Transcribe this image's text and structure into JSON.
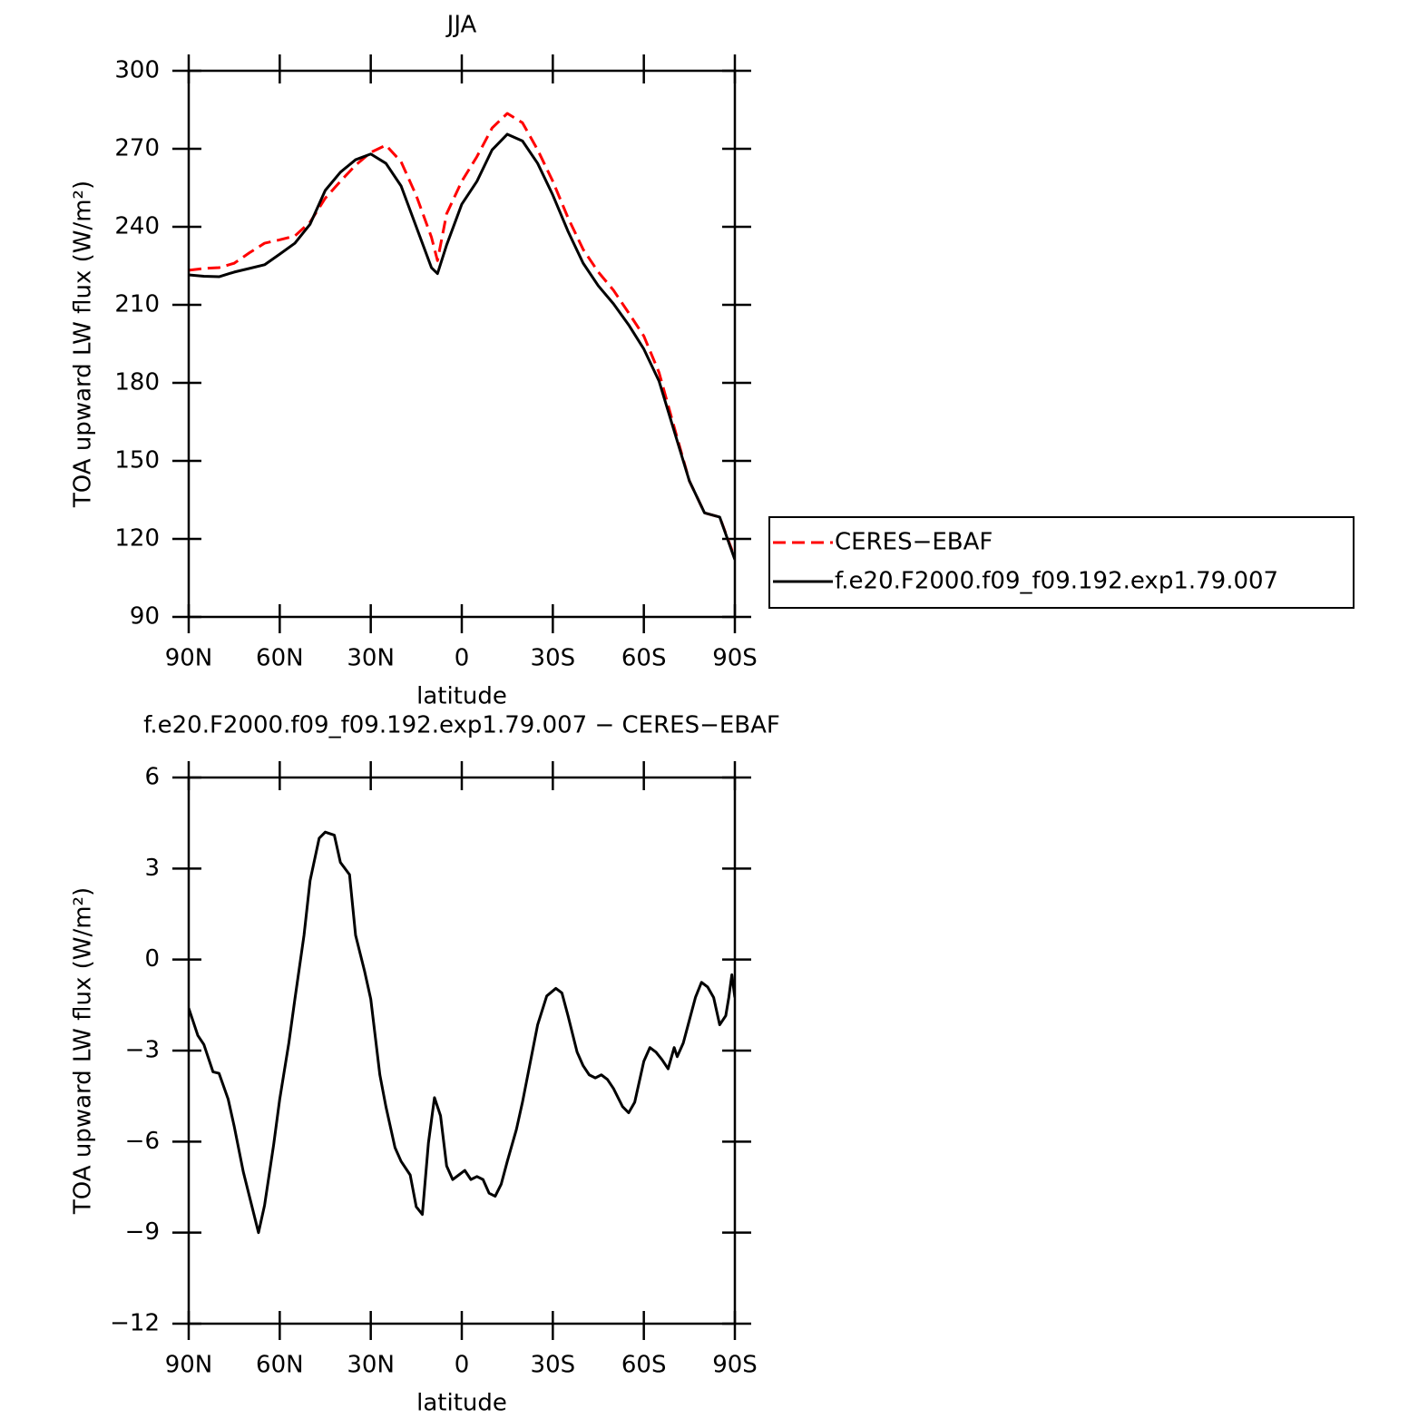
{
  "chart_data": [
    {
      "type": "line",
      "title": "JJA",
      "xlabel": "latitude",
      "ylabel": "TOA upward LW flux (W/m²)",
      "x": [
        90,
        85,
        80,
        75,
        70,
        65,
        60,
        55,
        50,
        45,
        40,
        35,
        30,
        25,
        20,
        15,
        10,
        8,
        5,
        0,
        -5,
        -10,
        -15,
        -20,
        -25,
        -30,
        -35,
        -40,
        -45,
        -50,
        -55,
        -60,
        -65,
        -70,
        -75,
        -80,
        -85,
        -90
      ],
      "series": [
        {
          "name": "CERES−EBAF",
          "color": "#ff0000",
          "dash": true,
          "values": [
            223.3,
            224,
            224.3,
            226,
            230,
            233.7,
            235,
            236.5,
            241.8,
            251,
            257.5,
            263.7,
            268.6,
            271.4,
            265,
            252,
            236,
            227,
            245,
            257.5,
            267,
            278,
            283.6,
            280,
            269.6,
            257.5,
            243.5,
            231.3,
            222.6,
            215.6,
            206.9,
            198,
            184,
            163,
            142.3,
            130,
            128.4,
            112.7
          ]
        },
        {
          "name": "f.e20.F2000.f09_f09.192.exp1.79.007",
          "color": "#000000",
          "dash": false,
          "values": [
            221.5,
            221,
            220.8,
            222.6,
            224,
            225.4,
            229.5,
            233.7,
            241,
            254,
            261,
            265.8,
            268,
            264.4,
            255.7,
            240,
            224.3,
            222,
            233,
            248.7,
            257.5,
            269.6,
            275.6,
            273,
            264.4,
            252.2,
            238.3,
            226,
            217.3,
            210.4,
            202.3,
            193,
            180.7,
            161.5,
            142.3,
            130,
            128.4,
            112
          ]
        }
      ],
      "xlim": [
        90,
        -90
      ],
      "xticks": [
        {
          "value": 90,
          "label": "90N"
        },
        {
          "value": 60,
          "label": "60N"
        },
        {
          "value": 30,
          "label": "30N"
        },
        0,
        {
          "value": -30,
          "label": "30S"
        },
        {
          "value": -60,
          "label": "60S"
        },
        {
          "value": -90,
          "label": "90S"
        }
      ],
      "ylim": [
        90,
        300
      ],
      "yticks": [
        90,
        120,
        150,
        180,
        210,
        240,
        270,
        300
      ],
      "legend": "right"
    },
    {
      "type": "line",
      "title": "f.e20.F2000.f09_f09.192.exp1.79.007 − CERES−EBAF",
      "xlabel": "latitude",
      "ylabel": "TOA upward LW flux (W/m²)",
      "x": [
        90,
        87,
        85,
        82,
        80,
        77,
        75,
        72,
        70,
        67,
        65,
        62,
        60,
        57,
        55,
        52,
        50,
        47,
        45,
        42,
        40,
        37,
        35,
        32,
        30,
        27,
        25,
        22,
        20,
        17,
        15,
        13,
        11,
        9,
        7,
        5,
        3,
        1,
        -1,
        -3,
        -5,
        -7,
        -9,
        -11,
        -13,
        -15,
        -18,
        -20,
        -25,
        -28,
        -31,
        -33,
        -35,
        -38,
        -40,
        -42,
        -44,
        -46,
        -48,
        -50,
        -53,
        -55,
        -57,
        -60,
        -62,
        -64,
        -66,
        -68,
        -70,
        -71,
        -73,
        -75,
        -77,
        -79,
        -81,
        -83,
        -85,
        -87,
        -88,
        -89,
        -90
      ],
      "color": "#000000",
      "values": [
        -1.6,
        -2.5,
        -2.8,
        -3.7,
        -3.75,
        -4.6,
        -5.5,
        -7,
        -7.8,
        -9.0,
        -8.1,
        -6.1,
        -4.6,
        -2.75,
        -1.3,
        0.8,
        2.6,
        4.0,
        4.2,
        4.1,
        3.2,
        2.8,
        0.8,
        -0.4,
        -1.3,
        -3.8,
        -4.85,
        -6.2,
        -6.65,
        -7.1,
        -8.15,
        -8.4,
        -6.05,
        -4.55,
        -5.15,
        -6.8,
        -7.25,
        -7.1,
        -6.95,
        -7.25,
        -7.15,
        -7.25,
        -7.7,
        -7.8,
        -7.4,
        -6.65,
        -5.6,
        -4.7,
        -2.15,
        -1.2,
        -0.95,
        -1.1,
        -1.85,
        -3.05,
        -3.5,
        -3.8,
        -3.9,
        -3.8,
        -3.95,
        -4.25,
        -4.85,
        -5.05,
        -4.7,
        -3.35,
        -2.9,
        -3.05,
        -3.3,
        -3.6,
        -2.9,
        -3.2,
        -2.75,
        -2.0,
        -1.25,
        -0.75,
        -0.9,
        -1.25,
        -2.15,
        -1.85,
        -1.25,
        -0.5,
        -1.25
      ],
      "xlim": [
        90,
        -90
      ],
      "xticks": [
        {
          "value": 90,
          "label": "90N"
        },
        {
          "value": 60,
          "label": "60N"
        },
        {
          "value": 30,
          "label": "30N"
        },
        0,
        {
          "value": -30,
          "label": "30S"
        },
        {
          "value": -60,
          "label": "60S"
        },
        {
          "value": -90,
          "label": "90S"
        }
      ],
      "ylim": [
        -12,
        6
      ],
      "yticks": [
        {
          "value": -12,
          "label": "−12"
        },
        {
          "value": -9,
          "label": "−9"
        },
        {
          "value": -6,
          "label": "−6"
        },
        {
          "value": -3,
          "label": "−3"
        },
        0,
        3,
        6
      ]
    }
  ]
}
